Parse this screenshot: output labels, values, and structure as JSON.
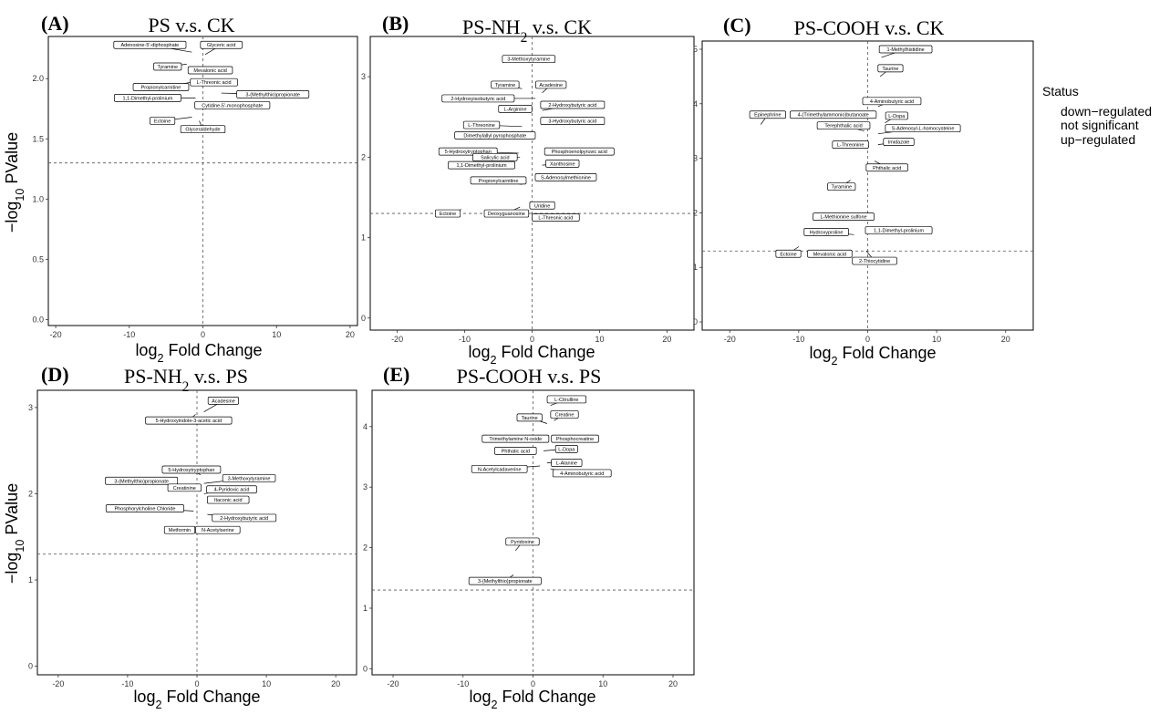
{
  "legend": {
    "title": "Status",
    "items": [
      "down−regulated",
      "not significant",
      "up−regulated"
    ]
  },
  "chart_data": [
    {
      "type": "scatter",
      "letter": "(A)",
      "title": "PS v.s. CK",
      "title_sub": "",
      "title_rest": "",
      "xlabel_main": "log",
      "xlabel_sub": "2",
      "xlabel_rest": " Fold Change",
      "ylabel_main": "−log",
      "ylabel_sub": "10",
      "ylabel_rest": "Value",
      "ylabel_glyph": "P",
      "xlim": [
        -21,
        21
      ],
      "ylim": [
        -0.05,
        2.35
      ],
      "xticks": [
        -20,
        -10,
        0,
        10,
        20
      ],
      "yticks": [
        0,
        0.5,
        1,
        1.5,
        2
      ],
      "ytick_labels": [
        "0.0",
        "0.5",
        "1.0",
        "1.5",
        "2.0"
      ],
      "vline": 0,
      "hline": 1.3,
      "points": [
        {
          "name": "Adenosine-5'-diphosphate",
          "x": -1.5,
          "y": 2.22,
          "lx": -7.2,
          "ly": 2.28
        },
        {
          "name": "Glyceric acid",
          "x": 0.3,
          "y": 2.2,
          "lx": 2.5,
          "ly": 2.28
        },
        {
          "name": "Tyramine",
          "x": -2.2,
          "y": 2.12,
          "lx": -4.8,
          "ly": 2.1
        },
        {
          "name": "Mevalonic acid",
          "x": 0.3,
          "y": 2.1,
          "lx": 1.0,
          "ly": 2.07
        },
        {
          "name": "Propionylcarnitine",
          "x": -1.5,
          "y": 1.97,
          "lx": -5.7,
          "ly": 1.93
        },
        {
          "name": "L-Threonic acid",
          "x": 0.2,
          "y": 1.98,
          "lx": 1.5,
          "ly": 1.97
        },
        {
          "name": "3-(Methylthio)propionate",
          "x": 2.5,
          "y": 1.88,
          "lx": 9.5,
          "ly": 1.87
        },
        {
          "name": "1,1-Dimethyl-prolinium",
          "x": -1.0,
          "y": 1.84,
          "lx": -7.5,
          "ly": 1.84
        },
        {
          "name": "Cytidine-5'-monophosphate",
          "x": 0.3,
          "y": 1.79,
          "lx": 4.0,
          "ly": 1.78
        },
        {
          "name": "Ectoine",
          "x": -1.5,
          "y": 1.68,
          "lx": -5.5,
          "ly": 1.65
        },
        {
          "name": "Glyceraldehyde",
          "x": -0.5,
          "y": 1.65,
          "lx": 0.0,
          "ly": 1.58
        }
      ]
    },
    {
      "type": "scatter",
      "letter": "(B)",
      "title": "PS-NH",
      "title_sub": "2",
      "title_rest": " v.s. CK",
      "xlabel_main": "log",
      "xlabel_sub": "2",
      "xlabel_rest": " Fold Change",
      "ylabel_main": "",
      "ylabel_sub": "",
      "ylabel_rest": "",
      "ylabel_glyph": "",
      "xlim": [
        -24,
        24
      ],
      "ylim": [
        -0.15,
        3.5
      ],
      "xticks": [
        -20,
        -10,
        0,
        10,
        20
      ],
      "yticks": [
        0,
        1,
        2,
        3
      ],
      "ytick_labels": [
        "0",
        "1",
        "2",
        "3"
      ],
      "vline": 0,
      "hline": 1.3,
      "points": [
        {
          "name": "3-Methoxytyramine",
          "x": 1.5,
          "y": 3.25,
          "lx": -0.5,
          "ly": 3.22
        },
        {
          "name": "Tyramine",
          "x": -1.5,
          "y": 2.85,
          "lx": -4.0,
          "ly": 2.9
        },
        {
          "name": "Acadesine",
          "x": 1.5,
          "y": 2.8,
          "lx": 2.8,
          "ly": 2.9
        },
        {
          "name": "2-Hydroxyisobutyric acid",
          "x": 0.5,
          "y": 2.73,
          "lx": -8.0,
          "ly": 2.73
        },
        {
          "name": "L-Arginine",
          "x": -0.5,
          "y": 2.6,
          "lx": -2.5,
          "ly": 2.6
        },
        {
          "name": "2-Hydroxybutyric acid",
          "x": 1.5,
          "y": 2.58,
          "lx": 6.0,
          "ly": 2.65
        },
        {
          "name": "L-Threonine",
          "x": -1.5,
          "y": 2.38,
          "lx": -7.5,
          "ly": 2.4
        },
        {
          "name": "3-Hydroxybutyric acid",
          "x": 1.8,
          "y": 2.43,
          "lx": 6.0,
          "ly": 2.45
        },
        {
          "name": "Dimethylallyl pyrophosphate",
          "x": 0.2,
          "y": 2.25,
          "lx": -5.5,
          "ly": 2.27
        },
        {
          "name": "5-Hydroxytryptophan",
          "x": -2.0,
          "y": 2.05,
          "lx": -9.5,
          "ly": 2.07
        },
        {
          "name": "Phosphoenolpyruvic acid",
          "x": 2.0,
          "y": 2.05,
          "lx": 7.0,
          "ly": 2.07
        },
        {
          "name": "Salicylic acid",
          "x": -1.8,
          "y": 2.0,
          "lx": -5.5,
          "ly": 2.0
        },
        {
          "name": "Xanthosine",
          "x": 1.5,
          "y": 1.9,
          "lx": 4.5,
          "ly": 1.92
        },
        {
          "name": "1,1-Dimethyl-prolinium",
          "x": -2.5,
          "y": 1.88,
          "lx": -7.5,
          "ly": 1.9
        },
        {
          "name": "S-Adenosylmethionine",
          "x": 1.0,
          "y": 1.73,
          "lx": 5.0,
          "ly": 1.75
        },
        {
          "name": "Propionylcarnitine",
          "x": -1.5,
          "y": 1.66,
          "lx": -5.0,
          "ly": 1.71
        },
        {
          "name": "Ectoine",
          "x": -10.5,
          "y": 1.35,
          "lx": -12.5,
          "ly": 1.3
        },
        {
          "name": "Deoxyguanosine",
          "x": -1.8,
          "y": 1.38,
          "lx": -3.8,
          "ly": 1.3
        },
        {
          "name": "Uridine",
          "x": 0.2,
          "y": 1.4,
          "lx": 1.5,
          "ly": 1.4
        },
        {
          "name": "L-Threonic acid",
          "x": 0.5,
          "y": 1.3,
          "lx": 3.5,
          "ly": 1.25
        }
      ]
    },
    {
      "type": "scatter",
      "letter": "(C)",
      "title": "PS-COOH v.s. CK",
      "title_sub": "",
      "title_rest": "",
      "xlabel_main": "log",
      "xlabel_sub": "2",
      "xlabel_rest": " Fold Change",
      "ylabel_main": "",
      "ylabel_sub": "",
      "ylabel_rest": "",
      "ylabel_glyph": "",
      "xlim": [
        -24,
        24
      ],
      "ylim": [
        -0.15,
        5.15
      ],
      "xticks": [
        -20,
        -10,
        0,
        10,
        20
      ],
      "yticks": [
        0,
        1,
        2,
        3,
        4,
        5
      ],
      "ytick_labels": [
        "0",
        "1",
        "2",
        "3",
        "4",
        "5"
      ],
      "vline": 0,
      "hline": 1.3,
      "points": [
        {
          "name": "1-Methylhistidine",
          "x": 2.0,
          "y": 4.85,
          "lx": 5.5,
          "ly": 5.0
        },
        {
          "name": "Taurine",
          "x": 1.8,
          "y": 4.5,
          "lx": 3.3,
          "ly": 4.65
        },
        {
          "name": "4-Aminobutyric acid",
          "x": 1.5,
          "y": 3.95,
          "lx": 3.5,
          "ly": 4.05
        },
        {
          "name": "Epinephrine",
          "x": -15.5,
          "y": 3.62,
          "lx": -14.5,
          "ly": 3.8
        },
        {
          "name": "4-(Trimethylammonio)butanoate",
          "x": -0.5,
          "y": 3.75,
          "lx": -5.0,
          "ly": 3.8
        },
        {
          "name": "L-Dopa",
          "x": 2.5,
          "y": 3.65,
          "lx": 4.2,
          "ly": 3.78
        },
        {
          "name": "Terephthalic acid",
          "x": -0.5,
          "y": 3.5,
          "lx": -3.5,
          "ly": 3.6
        },
        {
          "name": "S-Adenosyl-L-homocysteine",
          "x": 1.5,
          "y": 3.45,
          "lx": 8.0,
          "ly": 3.55
        },
        {
          "name": "Imidazole",
          "x": 1.5,
          "y": 3.25,
          "lx": 4.5,
          "ly": 3.3
        },
        {
          "name": "L-Threonine",
          "x": 0.2,
          "y": 3.22,
          "lx": -2.5,
          "ly": 3.25
        },
        {
          "name": "Phthalic acid",
          "x": 1.0,
          "y": 2.95,
          "lx": 2.8,
          "ly": 2.83
        },
        {
          "name": "Tyramine",
          "x": -2.5,
          "y": 2.6,
          "lx": -3.8,
          "ly": 2.48
        },
        {
          "name": "L-Methionine sulfone",
          "x": 0.3,
          "y": 1.98,
          "lx": -3.5,
          "ly": 1.93
        },
        {
          "name": "1,1-Dimethyl-prolinium",
          "x": 0.3,
          "y": 1.65,
          "lx": 4.5,
          "ly": 1.68
        },
        {
          "name": "Hydroxyproline",
          "x": -2.0,
          "y": 1.6,
          "lx": -6.0,
          "ly": 1.65
        },
        {
          "name": "Ectoine",
          "x": -10.0,
          "y": 1.38,
          "lx": -11.5,
          "ly": 1.25
        },
        {
          "name": "Mevalonic acid",
          "x": -2.5,
          "y": 1.32,
          "lx": -5.5,
          "ly": 1.25
        },
        {
          "name": "2-Thiocytidine",
          "x": -0.2,
          "y": 1.3,
          "lx": 1.0,
          "ly": 1.12
        }
      ]
    },
    {
      "type": "scatter",
      "letter": "(D)",
      "title": "PS-NH",
      "title_sub": "2",
      "title_rest": " v.s. PS",
      "xlabel_main": "log",
      "xlabel_sub": "2",
      "xlabel_rest": " Fold Change",
      "ylabel_main": "−log",
      "ylabel_sub": "10",
      "ylabel_rest": "Value",
      "ylabel_glyph": "P",
      "xlim": [
        -23,
        23
      ],
      "ylim": [
        -0.1,
        3.2
      ],
      "xticks": [
        -20,
        -10,
        0,
        10,
        20
      ],
      "yticks": [
        0,
        1,
        2,
        3
      ],
      "ytick_labels": [
        "0",
        "1",
        "2",
        "3"
      ],
      "vline": 0,
      "hline": 1.3,
      "points": [
        {
          "name": "Acadesine",
          "x": 1.0,
          "y": 2.95,
          "lx": 3.8,
          "ly": 3.08
        },
        {
          "name": "5-Hydroxyindole-3-acetic acid",
          "x": -0.2,
          "y": 2.92,
          "lx": -1.2,
          "ly": 2.85
        },
        {
          "name": "5-Hydroxytryptophan",
          "x": 0.5,
          "y": 2.22,
          "lx": -0.8,
          "ly": 2.28
        },
        {
          "name": "3-Methoxytyramine",
          "x": 1.0,
          "y": 2.12,
          "lx": 7.5,
          "ly": 2.18
        },
        {
          "name": "3-(Methylthio)propionate",
          "x": -2.5,
          "y": 2.1,
          "lx": -8.0,
          "ly": 2.15
        },
        {
          "name": "Creatinine",
          "x": -0.5,
          "y": 2.1,
          "lx": -1.8,
          "ly": 2.07
        },
        {
          "name": "4-Pyridoxic acid",
          "x": 1.0,
          "y": 2.0,
          "lx": 5.0,
          "ly": 2.05
        },
        {
          "name": "Itaconic acid",
          "x": 1.5,
          "y": 1.9,
          "lx": 4.5,
          "ly": 1.93
        },
        {
          "name": "Phosphorylcholine Chloride",
          "x": -0.5,
          "y": 1.8,
          "lx": -7.5,
          "ly": 1.83
        },
        {
          "name": "2-Hydroxybutyric acid",
          "x": 1.5,
          "y": 1.76,
          "lx": 6.8,
          "ly": 1.72
        },
        {
          "name": "Metformin",
          "x": -0.3,
          "y": 1.62,
          "lx": -2.5,
          "ly": 1.58
        },
        {
          "name": "N-Acetylserine",
          "x": 0.5,
          "y": 1.62,
          "lx": 3.0,
          "ly": 1.58
        }
      ]
    },
    {
      "type": "scatter",
      "letter": "(E)",
      "title": "PS-COOH v.s. PS",
      "title_sub": "",
      "title_rest": "",
      "xlabel_main": "log",
      "xlabel_sub": "2",
      "xlabel_rest": " Fold Change",
      "ylabel_main": "",
      "ylabel_sub": "",
      "ylabel_rest": "",
      "ylabel_glyph": "",
      "xlim": [
        -23,
        23
      ],
      "ylim": [
        -0.1,
        4.6
      ],
      "xticks": [
        -20,
        -10,
        0,
        10,
        20
      ],
      "yticks": [
        0,
        1,
        2,
        3,
        4
      ],
      "ytick_labels": [
        "0",
        "1",
        "2",
        "3",
        "4"
      ],
      "vline": 0,
      "hline": 1.3,
      "points": [
        {
          "name": "L-Citrulline",
          "x": 2.5,
          "y": 4.35,
          "lx": 4.8,
          "ly": 4.45
        },
        {
          "name": "Creatine",
          "x": 3.0,
          "y": 4.1,
          "lx": 4.5,
          "ly": 4.2
        },
        {
          "name": "Taurine",
          "x": 2.0,
          "y": 4.05,
          "lx": -0.5,
          "ly": 4.15
        },
        {
          "name": "Phosphocreatine",
          "x": 3.0,
          "y": 3.85,
          "lx": 6.0,
          "ly": 3.8
        },
        {
          "name": "Trimethylamine N-oxide",
          "x": 0.5,
          "y": 3.85,
          "lx": -2.5,
          "ly": 3.8
        },
        {
          "name": "Phthalic acid",
          "x": 0.2,
          "y": 3.6,
          "lx": -2.5,
          "ly": 3.6
        },
        {
          "name": "L-Dopa",
          "x": 1.5,
          "y": 3.6,
          "lx": 4.8,
          "ly": 3.63
        },
        {
          "name": "N-Acetylcadaverine",
          "x": 1.0,
          "y": 3.35,
          "lx": -4.8,
          "ly": 3.3
        },
        {
          "name": "L-Alanine",
          "x": 2.0,
          "y": 3.4,
          "lx": 4.8,
          "ly": 3.4
        },
        {
          "name": "4-Aminobutyric acid",
          "x": 2.5,
          "y": 3.3,
          "lx": 7.0,
          "ly": 3.23
        },
        {
          "name": "Pyridoxine",
          "x": -2.5,
          "y": 1.95,
          "lx": -1.5,
          "ly": 2.1
        },
        {
          "name": "3-(Methylthio)propionate",
          "x": -2.8,
          "y": 1.55,
          "lx": -4.0,
          "ly": 1.45
        }
      ]
    }
  ]
}
